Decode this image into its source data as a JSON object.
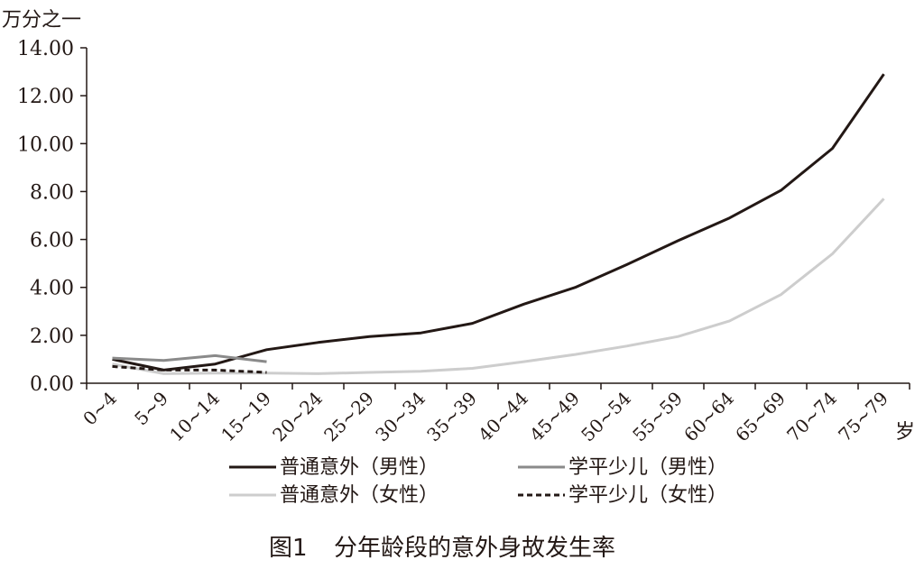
{
  "chart_data": {
    "type": "line",
    "unit_label": "万分之一",
    "x_unit_label": "岁",
    "categories": [
      "0~4",
      "5~9",
      "10~14",
      "15~19",
      "20~24",
      "25~29",
      "30~34",
      "35~39",
      "40~44",
      "45~49",
      "50~54",
      "55~59",
      "60~64",
      "65~69",
      "70~74",
      "75~79"
    ],
    "ylim": [
      0,
      14
    ],
    "yticks": [
      "0.00",
      "2.00",
      "4.00",
      "6.00",
      "8.00",
      "10.00",
      "12.00",
      "14.00"
    ],
    "grid": false,
    "legend_position": "bottom",
    "series": [
      {
        "name": "普通意外（男性）",
        "color": "#231815",
        "dash": "",
        "values": [
          1.0,
          0.55,
          0.8,
          1.4,
          1.7,
          1.95,
          2.1,
          2.5,
          3.3,
          4.0,
          4.95,
          5.95,
          6.9,
          8.05,
          9.8,
          12.9
        ]
      },
      {
        "name": "学平少儿（男性）",
        "color": "#8a8a8a",
        "dash": "",
        "values": [
          1.05,
          0.95,
          1.15,
          0.9,
          null,
          null,
          null,
          null,
          null,
          null,
          null,
          null,
          null,
          null,
          null,
          null
        ]
      },
      {
        "name": "普通意外（女性）",
        "color": "#cdcdcd",
        "dash": "",
        "values": [
          0.8,
          0.4,
          0.42,
          0.42,
          0.4,
          0.45,
          0.5,
          0.62,
          0.9,
          1.2,
          1.55,
          1.95,
          2.6,
          3.7,
          5.4,
          7.7
        ]
      },
      {
        "name": "学平少儿（女性）",
        "color": "#231815",
        "dash": "6,4",
        "values": [
          0.7,
          0.55,
          0.55,
          0.45,
          null,
          null,
          null,
          null,
          null,
          null,
          null,
          null,
          null,
          null,
          null,
          null
        ]
      }
    ]
  },
  "caption": {
    "label": "图1",
    "title": "分年龄段的意外身故发生率"
  }
}
